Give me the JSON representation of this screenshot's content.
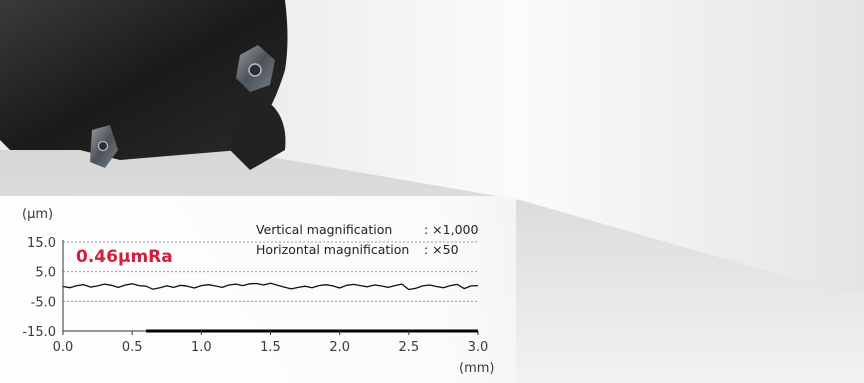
{
  "chart_data": {
    "type": "line",
    "title": "",
    "annotation": "0.46μmRa",
    "y_unit": "(μm)",
    "x_unit": "(mm)",
    "ylim": [
      -15.0,
      15.0
    ],
    "xlim": [
      0.0,
      3.0
    ],
    "y_ticks": [
      "15.0",
      "5.0",
      "-5.0",
      "-15.0"
    ],
    "x_ticks": [
      "0.0",
      "0.5",
      "1.0",
      "1.5",
      "2.0",
      "2.5",
      "3.0"
    ],
    "reference_lines_y": [
      15.0,
      5.0,
      -5.0
    ],
    "grid": false,
    "magnification": [
      {
        "label": "Vertical magnification",
        "value": ": ×1,000"
      },
      {
        "label": "Horizontal magnification",
        "value": ": ×50"
      }
    ],
    "series": [
      {
        "x": [
          0.0,
          0.05,
          0.1,
          0.15,
          0.2,
          0.25,
          0.3,
          0.35,
          0.4,
          0.45,
          0.5,
          0.55,
          0.6,
          0.65,
          0.7,
          0.75,
          0.8,
          0.85,
          0.9,
          0.95,
          1.0,
          1.05,
          1.1,
          1.15,
          1.2,
          1.25,
          1.3,
          1.35,
          1.4,
          1.45,
          1.5,
          1.55,
          1.6,
          1.65,
          1.7,
          1.75,
          1.8,
          1.85,
          1.9,
          1.95,
          2.0,
          2.05,
          2.1,
          2.15,
          2.2,
          2.25,
          2.3,
          2.35,
          2.4,
          2.45,
          2.5,
          2.55,
          2.6,
          2.65,
          2.7,
          2.75,
          2.8,
          2.85,
          2.9,
          2.95,
          3.0
        ],
        "y": [
          0.0,
          -0.4,
          0.3,
          0.6,
          -0.2,
          0.2,
          0.8,
          0.4,
          -0.3,
          0.5,
          0.9,
          0.3,
          0.1,
          -0.9,
          -0.4,
          0.2,
          -0.3,
          0.4,
          0.1,
          -0.5,
          0.3,
          0.6,
          0.2,
          -0.3,
          0.5,
          0.8,
          0.3,
          0.9,
          1.0,
          0.5,
          1.1,
          0.4,
          -0.2,
          -0.8,
          -0.3,
          0.1,
          -0.4,
          0.3,
          0.6,
          0.2,
          -0.5,
          0.4,
          0.7,
          0.3,
          -0.1,
          0.5,
          0.2,
          -0.3,
          0.3,
          0.8,
          -1.0,
          -0.6,
          0.2,
          0.5,
          0.0,
          -0.4,
          0.3,
          0.7,
          -0.7,
          0.2,
          0.3
        ]
      }
    ]
  },
  "colors": {
    "profile": "#111111",
    "ra_label": "#d21f3c",
    "axis": "#333333",
    "ref_line": "#9a9a9a",
    "text": "#3a3a3a"
  }
}
